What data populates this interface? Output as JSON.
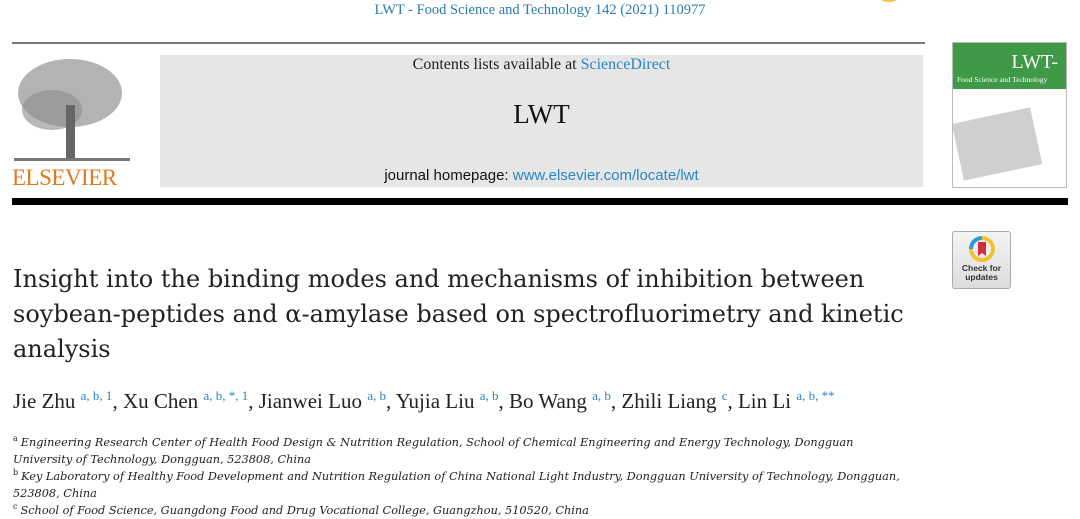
{
  "header": {
    "citation": "LWT - Food Science and Technology 142 (2021) 110977",
    "contents_prefix": "Contents lists available at ",
    "contents_link": "ScienceDirect",
    "journal_name": "LWT",
    "homepage_prefix": "journal homepage: ",
    "homepage_link": "www.elsevier.com/locate/lwt",
    "publisher_logo": "ELSEVIER"
  },
  "cover": {
    "title": "LWT-",
    "subtitle": "Food Science and Technology",
    "brand_color": "#3e9a46"
  },
  "check_updates": {
    "label_line1": "Check for",
    "label_line2": "updates"
  },
  "article": {
    "title": "Insight into the binding modes and mechanisms of inhibition between soybean-peptides and α-amylase based on spectrofluorimetry and kinetic analysis",
    "authors": [
      {
        "name": "Jie Zhu",
        "sup": "a, b, 1",
        "sep": ", "
      },
      {
        "name": "Xu Chen",
        "sup": "a, b, *, 1",
        "sep": ", "
      },
      {
        "name": "Jianwei Luo",
        "sup": "a, b",
        "sep": ", "
      },
      {
        "name": "Yujia Liu",
        "sup": "a, b",
        "sep": ", "
      },
      {
        "name": "Bo Wang",
        "sup": "a, b",
        "sep": ", "
      },
      {
        "name": "Zhili Liang",
        "sup": "c",
        "sep": ", "
      },
      {
        "name": "Lin Li",
        "sup": "a, b, **",
        "sep": ""
      }
    ],
    "affiliations": [
      {
        "key": "a",
        "text": "Engineering Research Center of Health Food Design & Nutrition Regulation, School of Chemical Engineering and Energy Technology, Dongguan University of Technology, Dongguan, 523808, China"
      },
      {
        "key": "b",
        "text": "Key Laboratory of Healthy Food Development and Nutrition Regulation of China National Light Industry, Dongguan University of Technology, Dongguan, 523808, China"
      },
      {
        "key": "c",
        "text": "School of Food Science, Guangdong Food and Drug Vocational College, Guangzhou, 510520, China"
      }
    ]
  }
}
